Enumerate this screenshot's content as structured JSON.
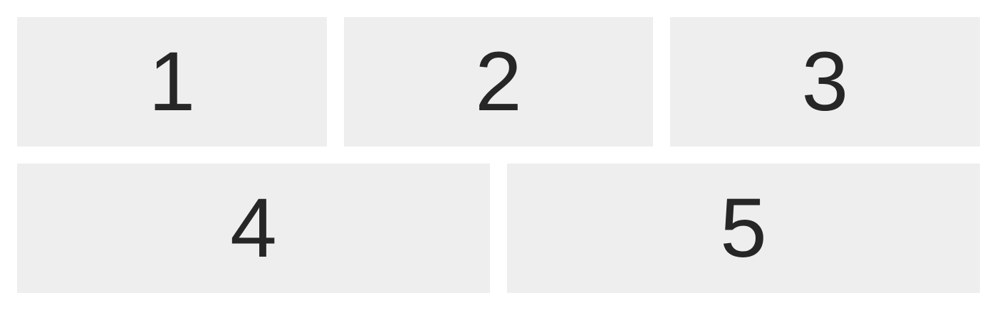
{
  "tiles": [
    {
      "label": "1"
    },
    {
      "label": "2"
    },
    {
      "label": "3"
    },
    {
      "label": "4"
    },
    {
      "label": "5"
    }
  ],
  "colors": {
    "background": "#ffffff",
    "tile": "#eeeeee",
    "text": "#262626"
  }
}
